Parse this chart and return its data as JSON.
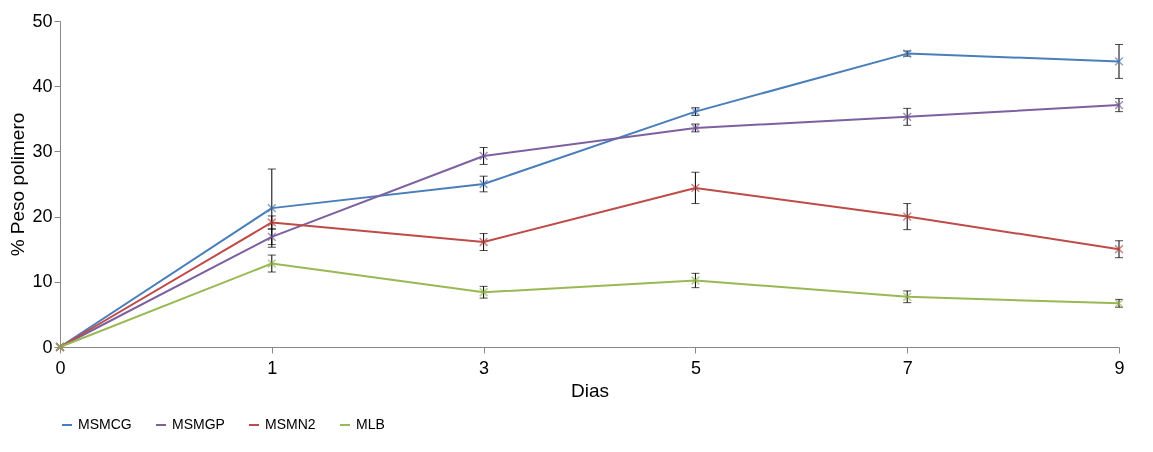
{
  "chart_data": {
    "type": "line",
    "xlabel": "Dias",
    "ylabel": "% Peso polimero",
    "categories": [
      "0",
      "1",
      "3",
      "5",
      "7",
      "9"
    ],
    "ylim": [
      0,
      50
    ],
    "yticks": [
      0,
      10,
      20,
      30,
      40,
      50
    ],
    "grid": false,
    "legend": "bottom",
    "marker": "cross",
    "series": [
      {
        "name": "MSMCG",
        "color": "#4a7ebb",
        "values": [
          0,
          21.3,
          25.0,
          36.1,
          45.0,
          43.8
        ],
        "errors": [
          null,
          6.0,
          1.2,
          0.6,
          0.4,
          2.6
        ]
      },
      {
        "name": "MSMGP",
        "color": "#7d60a0",
        "values": [
          0,
          16.9,
          29.3,
          33.6,
          35.3,
          37.1
        ],
        "errors": [
          null,
          1.2,
          1.3,
          0.6,
          1.3,
          1.0
        ]
      },
      {
        "name": "MSMN2",
        "color": "#be4b48",
        "values": [
          0,
          19.1,
          16.1,
          24.4,
          20.0,
          15.0
        ],
        "errors": [
          null,
          1.0,
          1.3,
          2.4,
          2.0,
          1.3
        ]
      },
      {
        "name": "MLB",
        "color": "#98b954",
        "values": [
          0,
          12.8,
          8.4,
          10.2,
          7.7,
          6.7
        ],
        "errors": [
          null,
          1.3,
          0.9,
          1.1,
          0.9,
          0.6
        ]
      }
    ]
  }
}
